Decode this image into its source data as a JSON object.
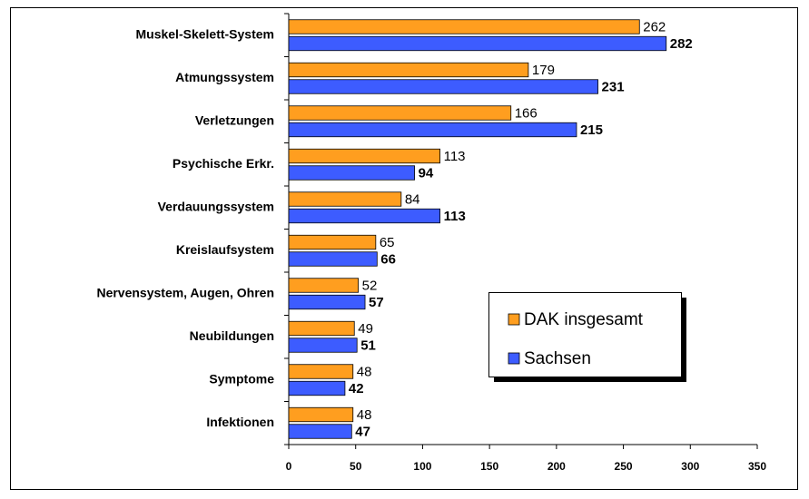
{
  "chart_data": {
    "type": "barh",
    "categories": [
      "Muskel-Skelett-System",
      "Atmungssystem",
      "Verletzungen",
      "Psychische Erkr.",
      "Verdauungssystem",
      "Kreislaufsystem",
      "Nervensystem, Augen, Ohren",
      "Neubildungen",
      "Symptome",
      "Infektionen"
    ],
    "series": [
      {
        "name": "DAK insgesamt",
        "color": "#ff9e1f",
        "values": [
          262,
          179,
          166,
          113,
          84,
          65,
          52,
          49,
          48,
          48
        ]
      },
      {
        "name": "Sachsen",
        "color": "#3d5cff",
        "values": [
          282,
          231,
          215,
          94,
          113,
          66,
          57,
          51,
          42,
          47
        ]
      }
    ],
    "xlim": [
      0,
      350
    ],
    "xticks": [
      0,
      50,
      100,
      150,
      200,
      250,
      300,
      350
    ]
  }
}
